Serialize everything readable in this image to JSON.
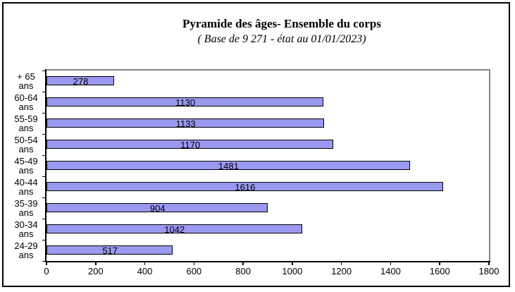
{
  "chart_data": {
    "type": "bar",
    "orientation": "horizontal",
    "title": "Pyramide des âges- Ensemble du corps",
    "subtitle": "( Base de 9 271  - état au 01/01/2023)",
    "categories": [
      "+ 65",
      "60-64",
      "55-59",
      "50-54",
      "45-49",
      "40-44",
      "35-39",
      "30-34",
      "24-29"
    ],
    "category_unit": "ans",
    "values": [
      278,
      1130,
      1133,
      1170,
      1481,
      1616,
      904,
      1042,
      517
    ],
    "xlabel": "",
    "ylabel": "",
    "xlim": [
      0,
      1800
    ],
    "xticks": [
      0,
      200,
      400,
      600,
      800,
      1000,
      1200,
      1400,
      1600,
      1800
    ],
    "grid": false,
    "legend": null,
    "value_label_position": "center-inside",
    "colors": {
      "bar_fill": "#9999F0",
      "bar_border": "#000000",
      "plot_border": "#848484",
      "axis": "#000000",
      "text": "#000000",
      "background": "#FFFFFF"
    }
  }
}
